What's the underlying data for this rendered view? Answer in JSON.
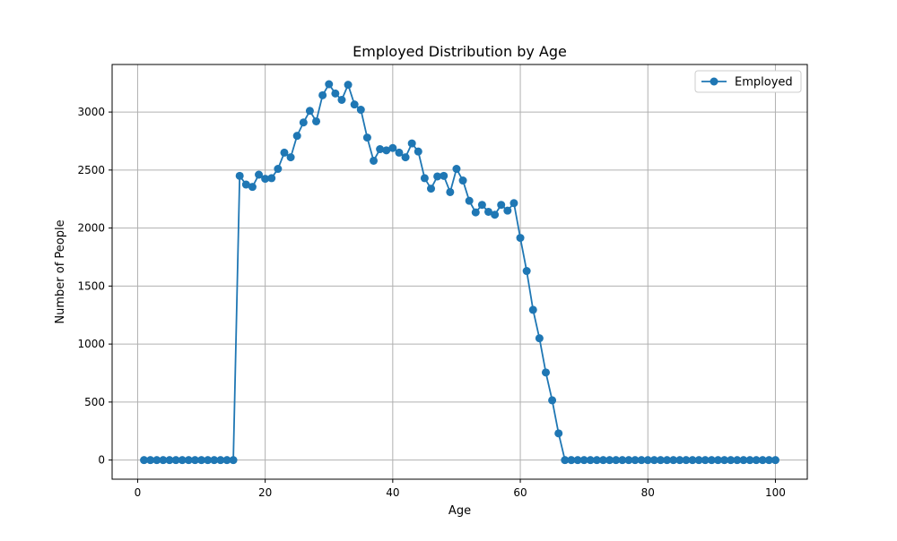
{
  "chart_data": {
    "type": "line",
    "title": "Employed Distribution by Age",
    "xlabel": "Age",
    "ylabel": "Number of People",
    "xlim": [
      -4,
      105
    ],
    "ylim": [
      -165,
      3410
    ],
    "xticks": [
      0,
      20,
      40,
      60,
      80,
      100
    ],
    "yticks": [
      0,
      500,
      1000,
      1500,
      2000,
      2500,
      3000
    ],
    "grid": true,
    "legend_position": "top-right",
    "series": [
      {
        "name": "Employed",
        "color": "#1f77b4",
        "marker": "circle",
        "x": [
          1,
          2,
          3,
          4,
          5,
          6,
          7,
          8,
          9,
          10,
          11,
          12,
          13,
          14,
          15,
          16,
          17,
          18,
          19,
          20,
          21,
          22,
          23,
          24,
          25,
          26,
          27,
          28,
          29,
          30,
          31,
          32,
          33,
          34,
          35,
          36,
          37,
          38,
          39,
          40,
          41,
          42,
          43,
          44,
          45,
          46,
          47,
          48,
          49,
          50,
          51,
          52,
          53,
          54,
          55,
          56,
          57,
          58,
          59,
          60,
          61,
          62,
          63,
          64,
          65,
          66,
          67,
          68,
          69,
          70,
          71,
          72,
          73,
          74,
          75,
          76,
          77,
          78,
          79,
          80,
          81,
          82,
          83,
          84,
          85,
          86,
          87,
          88,
          89,
          90,
          91,
          92,
          93,
          94,
          95,
          96,
          97,
          98,
          99,
          100
        ],
        "values": [
          0,
          0,
          0,
          0,
          0,
          0,
          0,
          0,
          0,
          0,
          0,
          0,
          0,
          0,
          0,
          2450,
          2375,
          2355,
          2460,
          2425,
          2430,
          2510,
          2650,
          2610,
          2795,
          2910,
          3010,
          2920,
          3145,
          3240,
          3160,
          3105,
          3235,
          3065,
          3020,
          2780,
          2580,
          2680,
          2670,
          2690,
          2650,
          2610,
          2730,
          2660,
          2430,
          2340,
          2445,
          2450,
          2310,
          2510,
          2410,
          2235,
          2135,
          2200,
          2140,
          2115,
          2200,
          2150,
          2215,
          1915,
          1630,
          1295,
          1050,
          755,
          515,
          230,
          0,
          0,
          0,
          0,
          0,
          0,
          0,
          0,
          0,
          0,
          0,
          0,
          0,
          0,
          0,
          0,
          0,
          0,
          0,
          0,
          0,
          0,
          0,
          0,
          0,
          0,
          0,
          0,
          0,
          0,
          0,
          0,
          0,
          0
        ]
      }
    ]
  }
}
